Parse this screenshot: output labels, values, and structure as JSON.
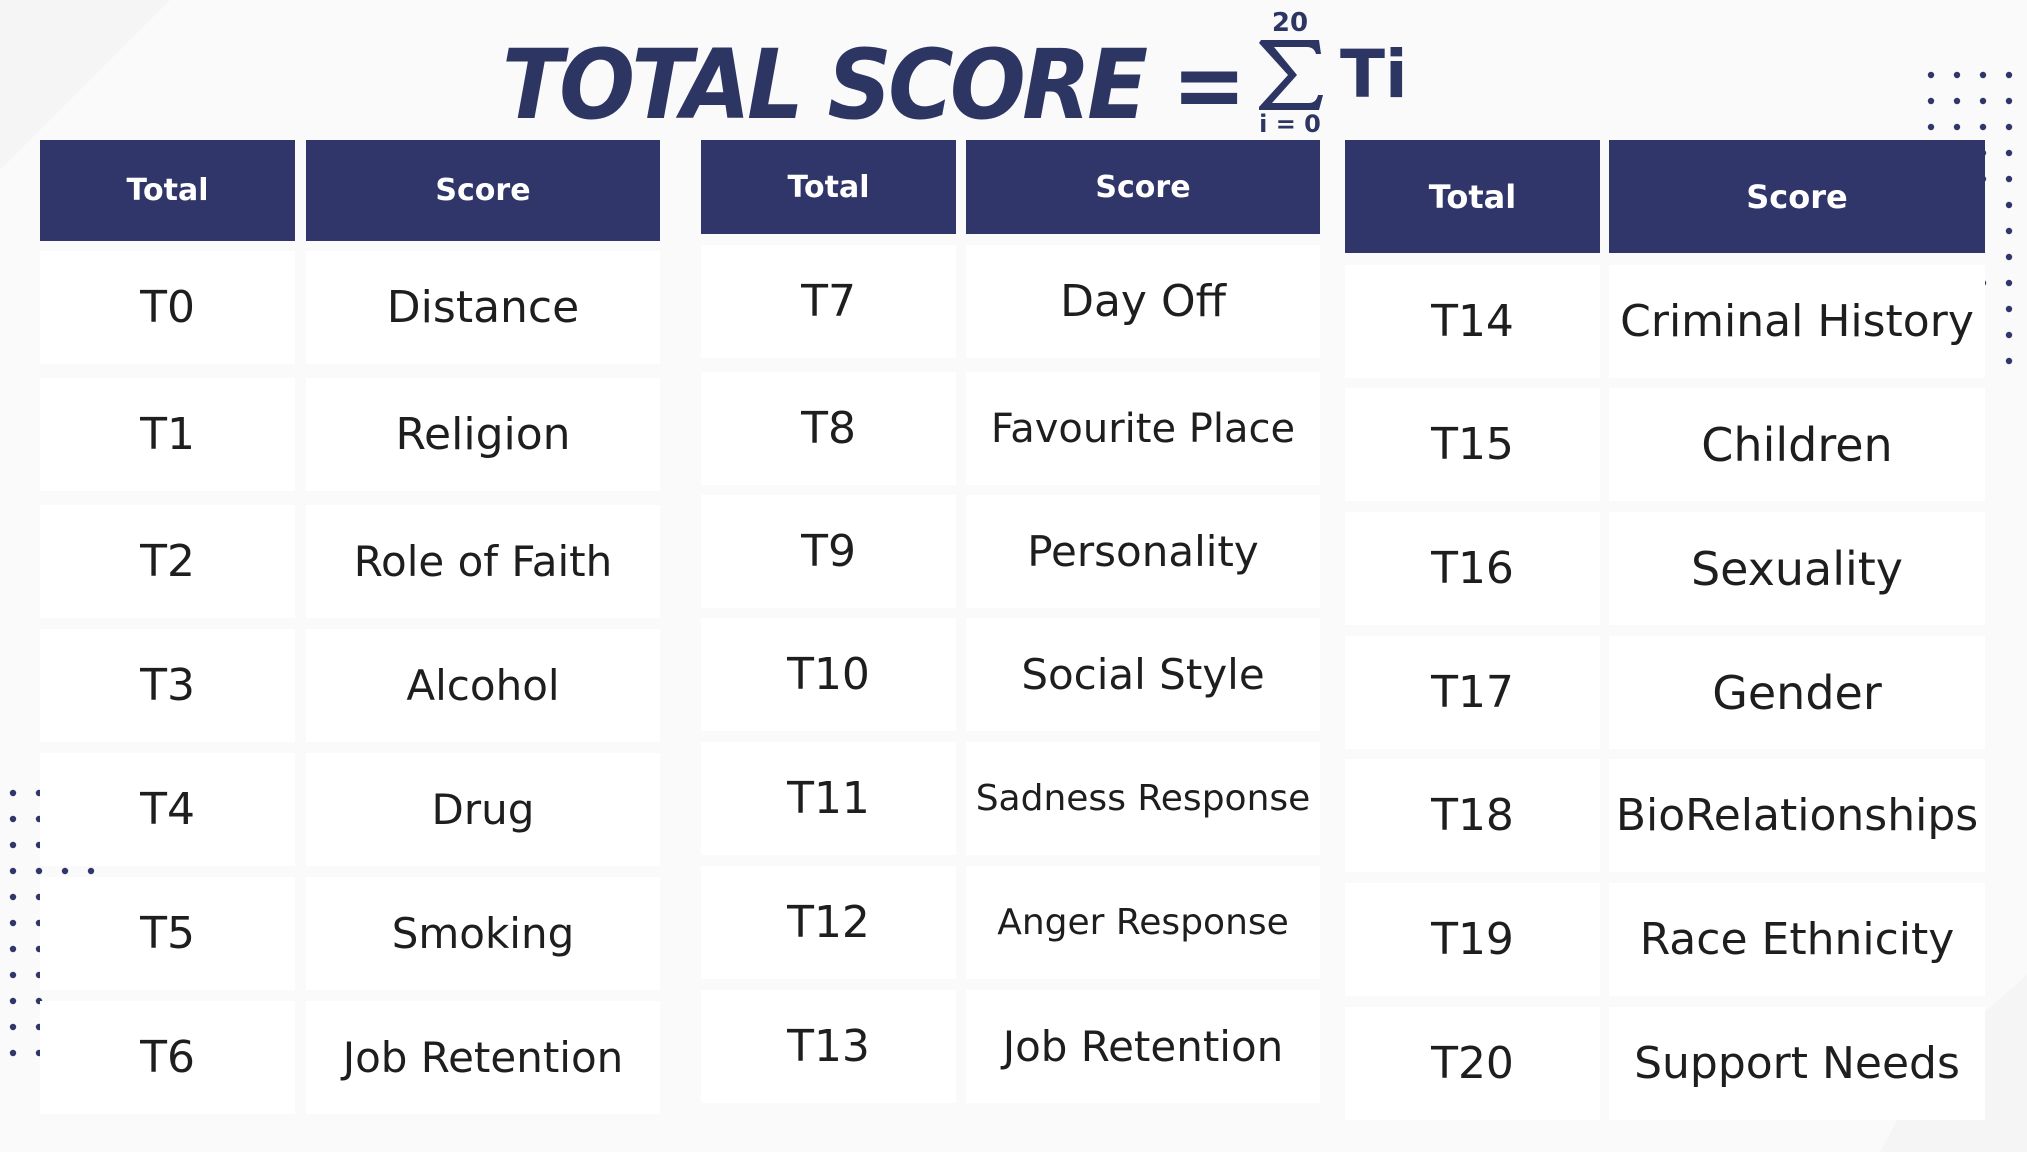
{
  "title": {
    "text": "TOTAL SCORE =",
    "sum_upper": "20",
    "sum_lower": "i = 0",
    "term": "Ti"
  },
  "colors": {
    "header_bg": "#31366a",
    "title": "#2d3563",
    "cell_bg": "#ffffff",
    "background": "#f1f1f2"
  },
  "tables": [
    {
      "headers": [
        "Total",
        "Score"
      ],
      "rows": [
        [
          "T0",
          "Distance"
        ],
        [
          "T1",
          "Religion"
        ],
        [
          "T2",
          "Role of Faith"
        ],
        [
          "T3",
          "Alcohol"
        ],
        [
          "T4",
          "Drug"
        ],
        [
          "T5",
          "Smoking"
        ],
        [
          "T6",
          "Job Retention"
        ]
      ]
    },
    {
      "headers": [
        "Total",
        "Score"
      ],
      "rows": [
        [
          "T7",
          "Day Off"
        ],
        [
          "T8",
          "Favourite Place"
        ],
        [
          "T9",
          "Personality"
        ],
        [
          "T10",
          "Social Style"
        ],
        [
          "T11",
          "Sadness Response"
        ],
        [
          "T12",
          "Anger Response"
        ],
        [
          "T13",
          "Job Retention"
        ]
      ]
    },
    {
      "headers": [
        "Total",
        "Score"
      ],
      "rows": [
        [
          "T14",
          "Criminal History"
        ],
        [
          "T15",
          "Children"
        ],
        [
          "T16",
          "Sexuality"
        ],
        [
          "T17",
          "Gender"
        ],
        [
          "T18",
          "BioRelationships"
        ],
        [
          "T19",
          "Race Ethnicity"
        ],
        [
          "T20",
          "Support Needs"
        ]
      ]
    }
  ]
}
